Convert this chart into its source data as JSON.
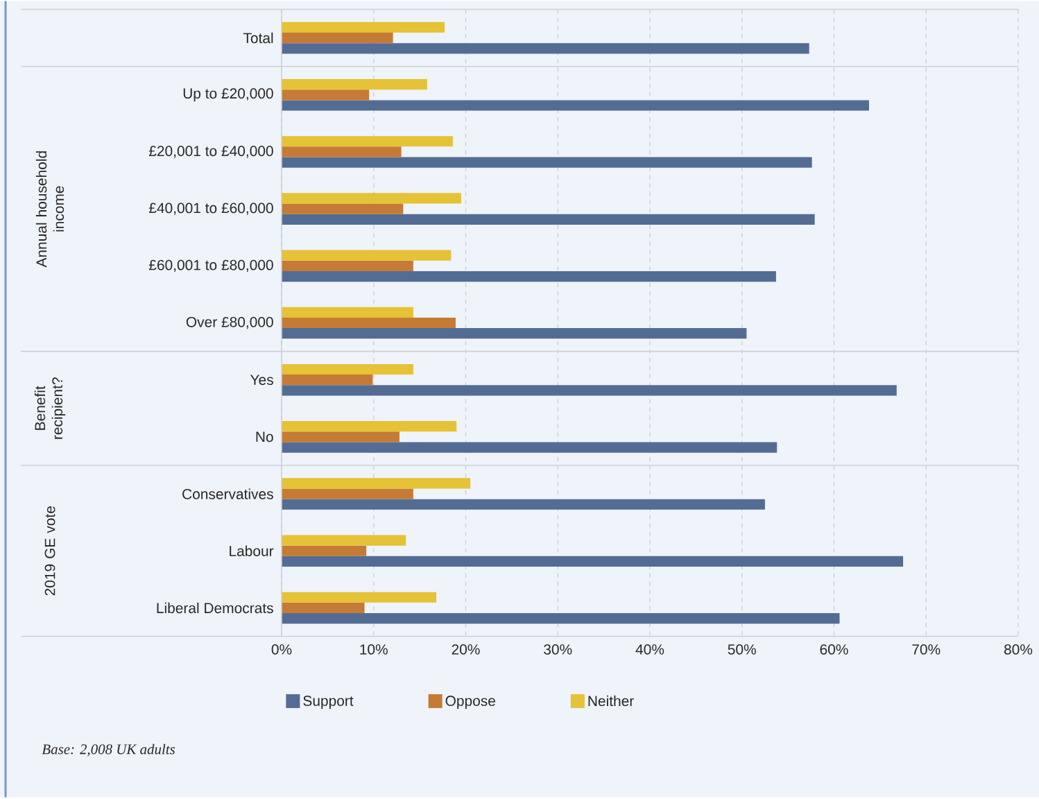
{
  "chart_data": {
    "type": "bar",
    "orientation": "horizontal",
    "categories": [
      "Total",
      "Up to £20,000",
      "£20,001 to £40,000",
      "£40,001 to £60,000",
      "£60,001 to £80,000",
      "Over £80,000",
      "Yes",
      "No",
      "Conservatives",
      "Labour",
      "Liberal Democrats"
    ],
    "series": [
      {
        "name": "Support",
        "color": "#536c94",
        "values": [
          57.3,
          63.8,
          57.6,
          57.9,
          53.7,
          50.5,
          66.8,
          53.8,
          52.5,
          67.5,
          60.6
        ]
      },
      {
        "name": "Oppose",
        "color": "#c57a35",
        "values": [
          12.1,
          9.5,
          13.0,
          13.2,
          14.3,
          18.9,
          9.9,
          12.8,
          14.3,
          9.2,
          9.0
        ]
      },
      {
        "name": "Neither",
        "color": "#e5c236",
        "values": [
          17.7,
          15.8,
          18.6,
          19.5,
          18.4,
          14.3,
          14.3,
          19.0,
          20.5,
          13.5,
          16.8
        ]
      }
    ],
    "xlim": [
      0,
      80
    ],
    "xticks": [
      {
        "value": 0,
        "label": "0%"
      },
      {
        "value": 10,
        "label": "10%"
      },
      {
        "value": 20,
        "label": "20%"
      },
      {
        "value": 30,
        "label": "30%"
      },
      {
        "value": 40,
        "label": "40%"
      },
      {
        "value": 50,
        "label": "50%"
      },
      {
        "value": 60,
        "label": "60%"
      },
      {
        "value": 70,
        "label": "70%"
      },
      {
        "value": 80,
        "label": "80%"
      }
    ],
    "grid": "x",
    "legend": "bottom",
    "annotations": [
      "Annual household income",
      "Benefit recipient?",
      "2019 GE vote",
      "Base: 2,008 UK adults"
    ]
  }
}
